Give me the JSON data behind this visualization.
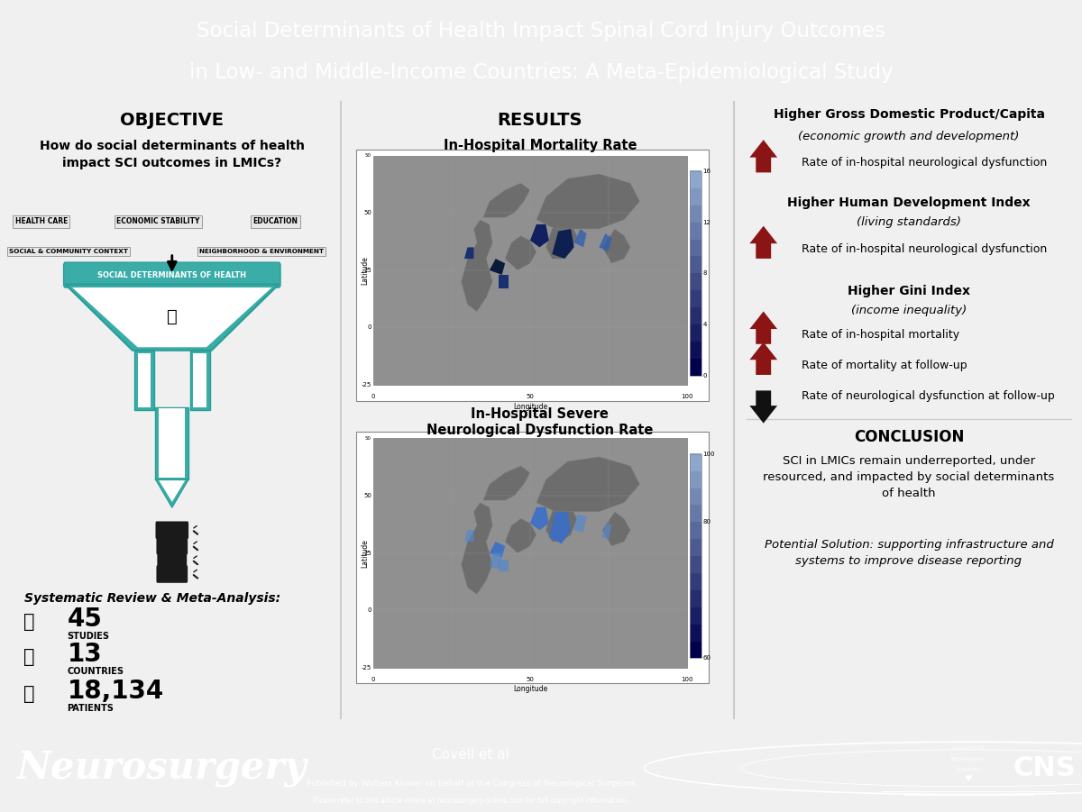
{
  "title_line1": "Social Determinants of Health Impact Spinal Cord Injury Outcomes",
  "title_line2": "in Low- and Middle-Income Countries: A Meta-Epidemiological Study",
  "title_bg": "#9e2a2b",
  "title_color": "#ffffff",
  "body_bg": "#f0f0f0",
  "panel_bg": "#ffffff",
  "footer_bg": "#9e2a2b",
  "footer_journal": "Neurosurgery",
  "footer_authors": "Covell et al",
  "footer_published": "Published by Wolters Kluwer on behalf of the Congress of Neurological Surgeons",
  "footer_note": "Please refer to this article online at neurosurgery-online.com for full copyright information.",
  "objective_title": "OBJECTIVE",
  "objective_subtitle": "How do social determinants of health\nimpact SCI outcomes in LMICs?",
  "labels_row1": [
    "HEALTH CARE",
    "ECONOMIC STABILITY",
    "EDUCATION"
  ],
  "label_row2_left": "SOCIAL & COMMUNITY CONTEXT",
  "label_row2_right": "NEIGHBORHOOD & ENVIRONMENT",
  "funnel_label": "SOCIAL DETERMINANTS OF HEALTH",
  "funnel_color": "#3aada8",
  "funnel_border": "#2a9d97",
  "meta_title": "Systematic Review & Meta-Analysis:",
  "stat1_num": "45",
  "stat1_label": "STUDIES",
  "stat2_num": "13",
  "stat2_label": "COUNTRIES",
  "stat3_num": "18,134",
  "stat3_label": "PATIENTS",
  "results_title": "RESULTS",
  "map1_title": "In-Hospital Mortality Rate",
  "map2_title": "In-Hospital Severe\nNeurological Dysfunction Rate",
  "map_bg": "#808080",
  "map_country_color": "#696969",
  "map_border_color": "#b0b0b0",
  "gdp_bold": "Higher Gross Domestic Product/Capita",
  "gdp_italic": "(economic growth and development)",
  "gdp_text": "Rate of in-hospital neurological dysfunction",
  "hdi_bold": "Higher Human Development Index",
  "hdi_italic": "(living standards)",
  "hdi_text": "Rate of in-hospital neurological dysfunction",
  "gini_bold": "Higher Gini Index",
  "gini_italic": "(income inequality)",
  "gini_text1": "Rate of in-hospital mortality",
  "gini_text2": "Rate of mortality at follow-up",
  "gini_text3": "Rate of neurological dysfunction at follow-up",
  "arrow_up_color": "#8b1515",
  "arrow_down_color": "#111111",
  "conclusion_title": "CONCLUSION",
  "conclusion_text": "SCI in LMICs remain underreported, under\nresourced, and impacted by social determinants\nof health",
  "potential_text": "Potential Solution: supporting infrastructure and\nsystems to improve disease reporting",
  "divider_color": "#cccccc"
}
